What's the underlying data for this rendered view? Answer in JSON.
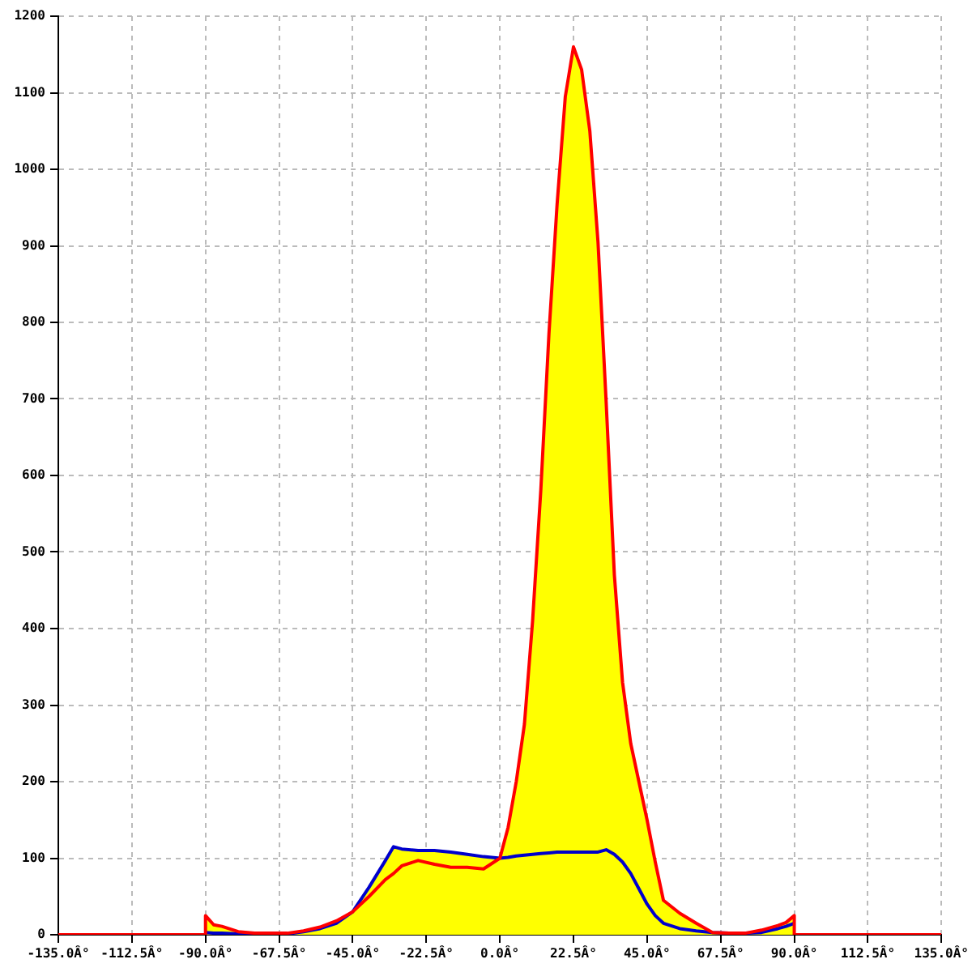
{
  "chart_data": {
    "type": "line",
    "series": [
      {
        "type": "area",
        "color": "#ffff00",
        "x": [
          -90,
          -87.5,
          -85,
          -80,
          -75,
          -70,
          -65,
          -60,
          -55,
          -50,
          -45,
          -40,
          -35,
          -32.5,
          -30,
          -25,
          -20,
          -15,
          -10,
          -5,
          0,
          2.5,
          5,
          7.5,
          10,
          12.5,
          15,
          17.5,
          20,
          22.5,
          25,
          27.5,
          30,
          32.5,
          35,
          37.5,
          40,
          42.5,
          45,
          47.5,
          50,
          55,
          60,
          65,
          70,
          75,
          80,
          85,
          87.5,
          90
        ],
        "values": [
          25,
          13,
          11,
          4,
          2,
          2,
          2,
          5,
          10,
          18,
          30,
          62,
          97,
          115,
          112,
          110,
          110,
          108,
          105,
          102,
          100,
          140,
          200,
          275,
          410,
          580,
          785,
          955,
          1095,
          1160,
          1130,
          1050,
          905,
          695,
          470,
          330,
          250,
          200,
          150,
          95,
          45,
          28,
          15,
          3,
          2,
          2,
          6,
          12,
          16,
          25
        ]
      },
      {
        "color": "#0000cc",
        "x": [
          -90,
          -87.5,
          -85,
          -80,
          -75,
          -70,
          -65,
          -60,
          -55,
          -50,
          -45,
          -40,
          -35,
          -32.5,
          -30,
          -25,
          -20,
          -15,
          -10,
          -5,
          0,
          2.5,
          5,
          7.5,
          10,
          12.5,
          15,
          17.5,
          20,
          22.5,
          25,
          27.5,
          30,
          32.5,
          35,
          37.5,
          40,
          42.5,
          45,
          47.5,
          50,
          55,
          60,
          65,
          70,
          75,
          80,
          85,
          87.5,
          90
        ],
        "values": [
          3,
          2,
          2,
          1,
          1,
          1,
          1,
          4,
          8,
          15,
          30,
          62,
          97,
          115,
          112,
          110,
          110,
          108,
          105,
          102,
          100,
          101,
          103,
          104,
          105,
          106,
          107,
          108,
          108,
          108,
          108,
          108,
          108,
          111,
          105,
          95,
          80,
          60,
          40,
          25,
          15,
          8,
          5,
          3,
          2,
          2,
          3,
          8,
          11,
          15
        ]
      },
      {
        "color": "#ff0000",
        "x": [
          -135,
          -90,
          -90,
          -87.5,
          -85,
          -80,
          -75,
          -70,
          -65,
          -60,
          -55,
          -50,
          -45,
          -40,
          -35,
          -32.5,
          -30,
          -25,
          -20,
          -15,
          -10,
          -5,
          0,
          2.5,
          5,
          7.5,
          10,
          12.5,
          15,
          17.5,
          20,
          22.5,
          25,
          27.5,
          30,
          32.5,
          35,
          37.5,
          40,
          42.5,
          45,
          47.5,
          50,
          55,
          60,
          65,
          70,
          75,
          80,
          85,
          87.5,
          90,
          90,
          135
        ],
        "values": [
          0,
          0,
          25,
          13,
          11,
          4,
          2,
          2,
          2,
          5,
          10,
          18,
          30,
          50,
          72,
          80,
          90,
          97,
          92,
          88,
          88,
          86,
          100,
          140,
          200,
          275,
          410,
          580,
          785,
          955,
          1095,
          1160,
          1130,
          1050,
          905,
          695,
          470,
          330,
          250,
          200,
          150,
          95,
          45,
          28,
          15,
          3,
          2,
          2,
          6,
          12,
          16,
          25,
          0,
          0
        ]
      }
    ],
    "xlim": [
      -135,
      135
    ],
    "xticks": [
      {
        "value": -135,
        "label": "-135.0Â°"
      },
      {
        "value": -112.5,
        "label": "-112.5Â°"
      },
      {
        "value": -90,
        "label": "-90.0Â°"
      },
      {
        "value": -67.5,
        "label": "-67.5Â°"
      },
      {
        "value": -45,
        "label": "-45.0Â°"
      },
      {
        "value": -22.5,
        "label": "-22.5Â°"
      },
      {
        "value": 0,
        "label": "0.0Â°"
      },
      {
        "value": 22.5,
        "label": "22.5Â°"
      },
      {
        "value": 45,
        "label": "45.0Â°"
      },
      {
        "value": 67.5,
        "label": "67.5Â°"
      },
      {
        "value": 90,
        "label": "90.0Â°"
      },
      {
        "value": 112.5,
        "label": "112.5Â°"
      },
      {
        "value": 135,
        "label": "135.0Â°"
      }
    ],
    "ylim": [
      0,
      1200
    ],
    "yticks": [
      0,
      100,
      200,
      300,
      400,
      500,
      600,
      700,
      800,
      900,
      1000,
      1100,
      1200
    ],
    "grid": true,
    "legend": false,
    "marker": "none",
    "line_style": "solid"
  }
}
